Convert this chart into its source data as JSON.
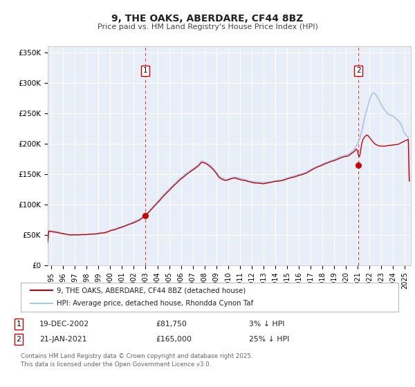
{
  "title": "9, THE OAKS, ABERDARE, CF44 8BZ",
  "subtitle": "Price paid vs. HM Land Registry's House Price Index (HPI)",
  "ylabel_ticks": [
    "£0",
    "£50K",
    "£100K",
    "£150K",
    "£200K",
    "£250K",
    "£300K",
    "£350K"
  ],
  "ytick_values": [
    0,
    50000,
    100000,
    150000,
    200000,
    250000,
    300000,
    350000
  ],
  "ylim": [
    0,
    360000
  ],
  "xlim_start": 1994.7,
  "xlim_end": 2025.5,
  "hpi_color": "#a8c8e8",
  "price_color": "#cc0000",
  "marker_color": "#cc0000",
  "background_color": "#e8eef8",
  "grid_color": "#ffffff",
  "vline_color": "#dd0000",
  "sale1_x": 2002.97,
  "sale1_y": 81750,
  "sale2_x": 2021.05,
  "sale2_y": 165000,
  "legend_label1": "9, THE OAKS, ABERDARE, CF44 8BZ (detached house)",
  "legend_label2": "HPI: Average price, detached house, Rhondda Cynon Taf",
  "xtick_years": [
    1995,
    1996,
    1997,
    1998,
    1999,
    2000,
    2001,
    2002,
    2003,
    2004,
    2005,
    2006,
    2007,
    2008,
    2009,
    2010,
    2011,
    2012,
    2013,
    2014,
    2015,
    2016,
    2017,
    2018,
    2019,
    2020,
    2021,
    2022,
    2023,
    2024,
    2025
  ],
  "footnote": "Contains HM Land Registry data © Crown copyright and database right 2025.\nThis data is licensed under the Open Government Licence v3.0."
}
